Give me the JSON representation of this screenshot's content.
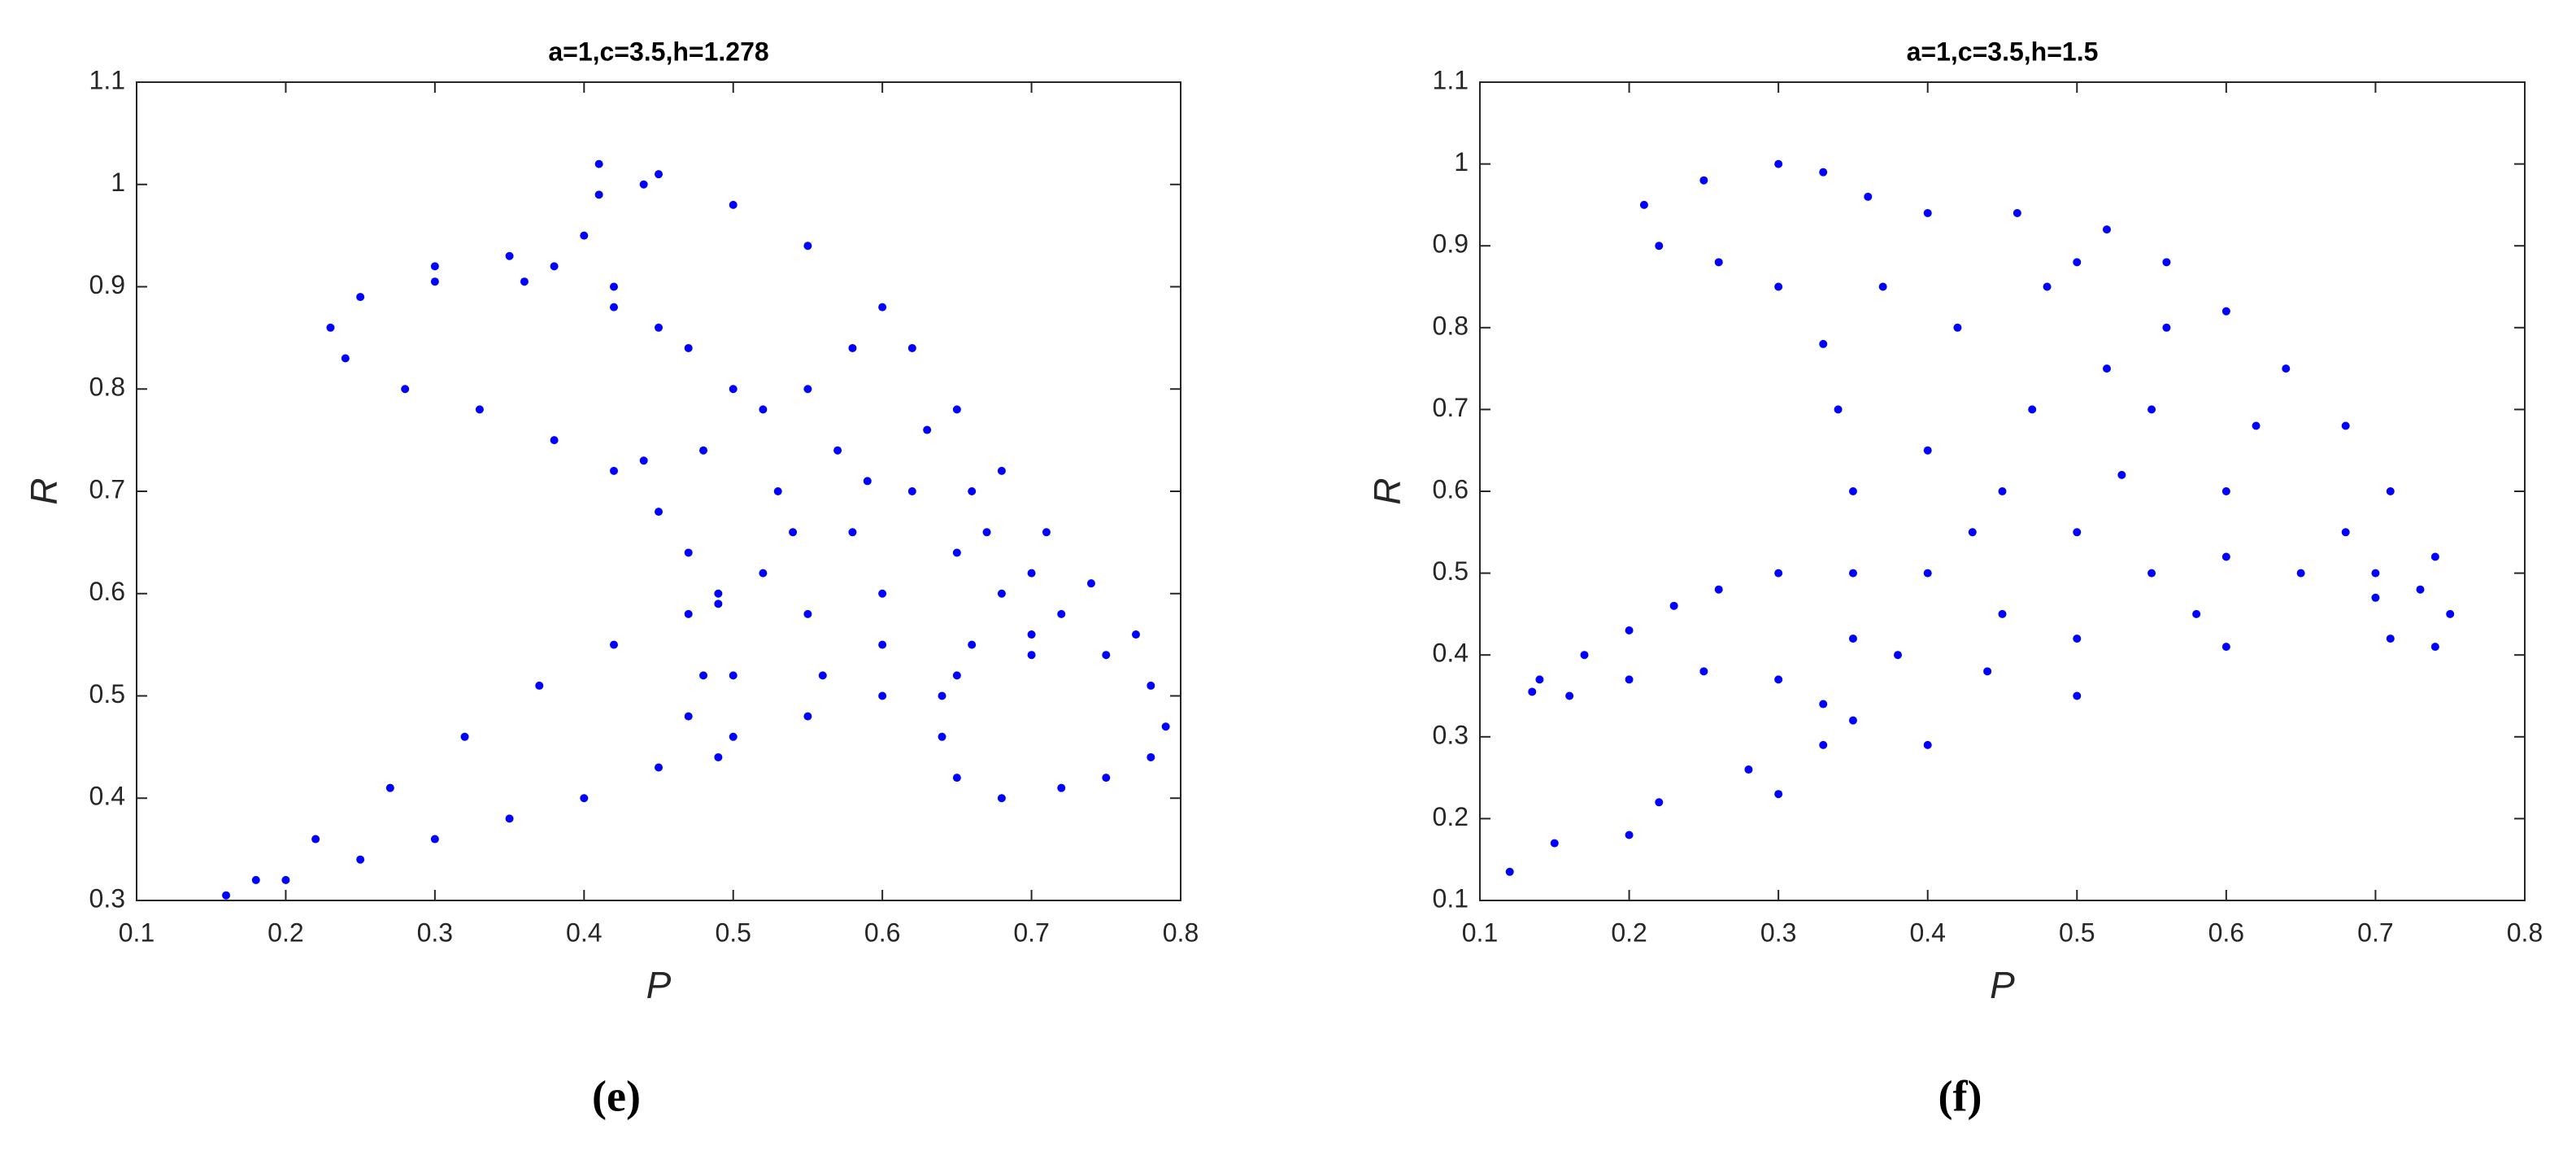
{
  "chart_data": [
    {
      "type": "scatter",
      "title": "a=1,c=3.5,h=1.278",
      "x_label": "P",
      "y_label": "R",
      "caption": "(e)",
      "xlim": [
        0.1,
        0.8
      ],
      "ylim": [
        0.3,
        1.1
      ],
      "xticks": [
        0.1,
        0.2,
        0.3,
        0.4,
        0.5,
        0.6,
        0.7,
        0.8
      ],
      "yticks": [
        0.3,
        0.4,
        0.5,
        0.6,
        0.7,
        0.8,
        0.9,
        1,
        1.1
      ],
      "series": [
        {
          "color": "#0000ff",
          "x": [
            0.16,
            0.2,
            0.25,
            0.3,
            0.35,
            0.4,
            0.45,
            0.5,
            0.55,
            0.6,
            0.65,
            0.7,
            0.75,
            0.78,
            0.79,
            0.78,
            0.75,
            0.72,
            0.68,
            0.65,
            0.64,
            0.64,
            0.66,
            0.18,
            0.22,
            0.27,
            0.32,
            0.37,
            0.42,
            0.47,
            0.49,
            0.42,
            0.45,
            0.47,
            0.49,
            0.48,
            0.47,
            0.49,
            0.38,
            0.33,
            0.28,
            0.24,
            0.23,
            0.25,
            0.3,
            0.35,
            0.38,
            0.3,
            0.36,
            0.42,
            0.47,
            0.5,
            0.52,
            0.41,
            0.45,
            0.5,
            0.55,
            0.6,
            0.58,
            0.55,
            0.48,
            0.44,
            0.41,
            0.44,
            0.4,
            0.42,
            0.45,
            0.62,
            0.65,
            0.68,
            0.71,
            0.74,
            0.77,
            0.52,
            0.55,
            0.58,
            0.6,
            0.62,
            0.65,
            0.68,
            0.7,
            0.56,
            0.53,
            0.57,
            0.63,
            0.66,
            0.7,
            0.72,
            0.5,
            0.6,
            0.67,
            0.54,
            0.59
          ],
          "values": [
            0.305,
            0.32,
            0.34,
            0.36,
            0.38,
            0.4,
            0.43,
            0.46,
            0.48,
            0.5,
            0.52,
            0.54,
            0.54,
            0.51,
            0.47,
            0.44,
            0.42,
            0.41,
            0.4,
            0.42,
            0.46,
            0.5,
            0.55,
            0.32,
            0.36,
            0.41,
            0.46,
            0.51,
            0.55,
            0.58,
            0.59,
            0.72,
            0.68,
            0.64,
            0.6,
            0.52,
            0.48,
            0.44,
            0.75,
            0.78,
            0.8,
            0.83,
            0.86,
            0.89,
            0.92,
            0.93,
            0.92,
            0.905,
            0.905,
            0.88,
            0.84,
            0.8,
            0.78,
            1.02,
            1.01,
            0.98,
            0.94,
            0.88,
            0.84,
            0.8,
            0.74,
            0.73,
            0.99,
            1.0,
            0.95,
            0.9,
            0.86,
            0.84,
            0.78,
            0.72,
            0.66,
            0.61,
            0.56,
            0.62,
            0.58,
            0.66,
            0.6,
            0.7,
            0.64,
            0.6,
            0.56,
            0.52,
            0.7,
            0.74,
            0.76,
            0.7,
            0.62,
            0.58,
            0.52,
            0.55,
            0.66,
            0.66,
            0.71
          ]
        }
      ]
    },
    {
      "type": "scatter",
      "title": "a=1,c=3.5,h=1.5",
      "x_label": "P",
      "y_label": "R",
      "caption": "(f)",
      "xlim": [
        0.1,
        0.8
      ],
      "ylim": [
        0.1,
        1.1
      ],
      "xticks": [
        0.1,
        0.2,
        0.3,
        0.4,
        0.5,
        0.6,
        0.7,
        0.8
      ],
      "yticks": [
        0.1,
        0.2,
        0.3,
        0.4,
        0.5,
        0.6,
        0.7,
        0.8,
        0.9,
        1,
        1.1
      ],
      "series": [
        {
          "color": "#0000ff",
          "x": [
            0.12,
            0.2,
            0.3,
            0.4,
            0.5,
            0.6,
            0.7,
            0.73,
            0.75,
            0.74,
            0.71,
            0.15,
            0.22,
            0.28,
            0.33,
            0.35,
            0.135,
            0.16,
            0.2,
            0.25,
            0.3,
            0.33,
            0.14,
            0.17,
            0.2,
            0.23,
            0.26,
            0.3,
            0.35,
            0.35,
            0.35,
            0.34,
            0.33,
            0.3,
            0.26,
            0.22,
            0.21,
            0.25,
            0.3,
            0.33,
            0.36,
            0.4,
            0.46,
            0.52,
            0.56,
            0.6,
            0.64,
            0.68,
            0.71,
            0.74,
            0.4,
            0.45,
            0.5,
            0.55,
            0.6,
            0.42,
            0.48,
            0.52,
            0.38,
            0.44,
            0.5,
            0.58,
            0.65,
            0.62,
            0.56,
            0.4,
            0.47,
            0.53,
            0.6,
            0.43,
            0.37,
            0.5,
            0.45,
            0.55,
            0.68,
            0.7
          ],
          "values": [
            0.135,
            0.18,
            0.23,
            0.29,
            0.35,
            0.41,
            0.47,
            0.48,
            0.45,
            0.41,
            0.42,
            0.17,
            0.22,
            0.26,
            0.29,
            0.32,
            0.355,
            0.35,
            0.37,
            0.38,
            0.37,
            0.34,
            0.37,
            0.4,
            0.43,
            0.46,
            0.48,
            0.5,
            0.42,
            0.5,
            0.6,
            0.7,
            0.78,
            0.85,
            0.88,
            0.9,
            0.95,
            0.98,
            1.0,
            0.99,
            0.96,
            0.94,
            0.94,
            0.92,
            0.88,
            0.82,
            0.75,
            0.68,
            0.6,
            0.52,
            0.5,
            0.6,
            0.55,
            0.7,
            0.6,
            0.8,
            0.85,
            0.75,
            0.4,
            0.38,
            0.42,
            0.45,
            0.5,
            0.68,
            0.8,
            0.65,
            0.7,
            0.62,
            0.52,
            0.55,
            0.85,
            0.88,
            0.45,
            0.5,
            0.55,
            0.5
          ]
        }
      ]
    }
  ]
}
